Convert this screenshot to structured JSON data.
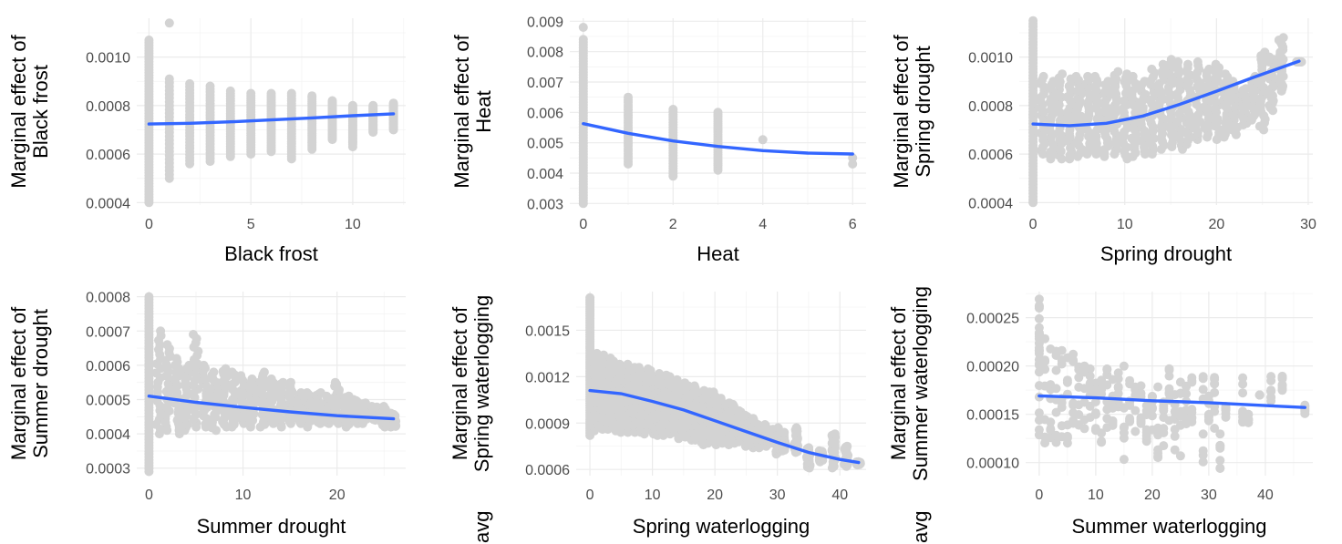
{
  "colors": {
    "points": "#d3d3d3",
    "fit": "#3366ff",
    "grid": "#ebebeb",
    "tick_text": "#4d4d4d"
  },
  "chart_data": [
    {
      "id": "black-frost",
      "type": "scatter",
      "xlabel": "Black frost",
      "ylabel_lines": [
        "Marginal effect of",
        "Black frost"
      ],
      "xlim": [
        -0.6,
        12.6
      ],
      "ylim": [
        0.00039,
        0.00116
      ],
      "xticks": [
        0,
        5,
        10
      ],
      "xtick_labels": [
        "0",
        "5",
        "10"
      ],
      "yticks": [
        0.0004,
        0.0006,
        0.0008,
        0.001
      ],
      "ytick_labels": [
        "0.0004",
        "0.0006",
        "0.0008",
        "0.0010"
      ],
      "points_mode": "columns",
      "columns": [
        [
          0,
          0.0004,
          0.00107
        ],
        [
          1,
          0.0005,
          0.00091
        ],
        [
          2,
          0.00056,
          0.00089
        ],
        [
          3,
          0.00057,
          0.00088
        ],
        [
          4,
          0.00059,
          0.00086
        ],
        [
          5,
          0.0006,
          0.00085
        ],
        [
          6,
          0.00061,
          0.00085
        ],
        [
          7,
          0.00058,
          0.00085
        ],
        [
          8,
          0.00063,
          0.00084
        ],
        [
          9,
          0.00066,
          0.00082
        ],
        [
          10,
          0.00064,
          0.0008
        ],
        [
          11,
          0.00069,
          0.0008
        ],
        [
          12,
          0.0007,
          0.00081
        ]
      ],
      "outliers": [
        [
          1,
          0.00114
        ],
        [
          8,
          0.00062
        ],
        [
          10,
          0.00063
        ]
      ],
      "fit": [
        [
          0,
          0.000724
        ],
        [
          2,
          0.000727
        ],
        [
          4,
          0.000733
        ],
        [
          6,
          0.000741
        ],
        [
          8,
          0.000749
        ],
        [
          10,
          0.000758
        ],
        [
          12,
          0.000766
        ]
      ]
    },
    {
      "id": "heat",
      "type": "scatter",
      "xlabel": "Heat",
      "ylabel_lines": [
        "Marginal effect of",
        "Heat"
      ],
      "xlim": [
        -0.3,
        6.3
      ],
      "ylim": [
        0.00295,
        0.0091
      ],
      "xticks": [
        0,
        2,
        4,
        6
      ],
      "xtick_labels": [
        "0",
        "2",
        "4",
        "6"
      ],
      "yticks": [
        0.003,
        0.004,
        0.005,
        0.006,
        0.007,
        0.008,
        0.009
      ],
      "ytick_labels": [
        "0.003",
        "0.004",
        "0.005",
        "0.006",
        "0.007",
        "0.008",
        "0.009"
      ],
      "points_mode": "columns",
      "columns": [
        [
          0,
          0.003,
          0.0084
        ],
        [
          1,
          0.0043,
          0.0065
        ],
        [
          2,
          0.0039,
          0.0061
        ],
        [
          3,
          0.0041,
          0.006
        ]
      ],
      "outliers": [
        [
          0,
          0.0088
        ],
        [
          4,
          0.0051
        ],
        [
          6,
          0.0043
        ],
        [
          6,
          0.0045
        ]
      ],
      "fit": [
        [
          0,
          0.00563
        ],
        [
          1,
          0.00531
        ],
        [
          2,
          0.00506
        ],
        [
          3,
          0.00488
        ],
        [
          4,
          0.00474
        ],
        [
          5,
          0.00466
        ],
        [
          6,
          0.00463
        ]
      ]
    },
    {
      "id": "spring-drought",
      "type": "scatter",
      "xlabel": "Spring drought",
      "ylabel_lines": [
        "Marginal effect of",
        "Spring drought"
      ],
      "xlim": [
        -1.5,
        30.5
      ],
      "ylim": [
        0.00039,
        0.00116
      ],
      "xticks": [
        0,
        10,
        20,
        30
      ],
      "xtick_labels": [
        "0",
        "10",
        "20",
        "30"
      ],
      "yticks": [
        0.0004,
        0.0006,
        0.0008,
        0.001
      ],
      "ytick_labels": [
        "0.0004",
        "0.0006",
        "0.0008",
        "0.0010"
      ],
      "points_mode": "cloud",
      "cloud": [
        [
          0,
          0.0004,
          0.00115
        ],
        [
          1,
          0.0006,
          0.00092
        ],
        [
          2,
          0.00058,
          0.0009
        ],
        [
          3,
          0.00058,
          0.00093
        ],
        [
          4,
          0.00058,
          0.00091
        ],
        [
          5,
          0.00059,
          0.00092
        ],
        [
          6,
          0.0006,
          0.00092
        ],
        [
          7,
          0.0006,
          0.00092
        ],
        [
          8,
          0.00059,
          0.0009
        ],
        [
          9,
          0.0006,
          0.00094
        ],
        [
          10,
          0.00058,
          0.00093
        ],
        [
          11,
          0.00059,
          0.00092
        ],
        [
          12,
          0.0006,
          0.0009
        ],
        [
          13,
          0.0006,
          0.00095
        ],
        [
          14,
          0.00062,
          0.00097
        ],
        [
          15,
          0.00063,
          0.00099
        ],
        [
          16,
          0.00062,
          0.00098
        ],
        [
          17,
          0.00064,
          0.00097
        ],
        [
          18,
          0.00066,
          0.00098
        ],
        [
          19,
          0.00067,
          0.00095
        ],
        [
          20,
          0.00066,
          0.00097
        ],
        [
          21,
          0.00067,
          0.00093
        ],
        [
          22,
          0.00068,
          0.0009
        ],
        [
          23,
          0.00072,
          0.00087
        ],
        [
          24,
          0.00074,
          0.00092
        ],
        [
          25,
          0.0007,
          0.00102
        ],
        [
          26,
          0.00078,
          0.001
        ],
        [
          27,
          0.00086,
          0.00108
        ],
        [
          29,
          0.00098,
          0.00098
        ]
      ],
      "fit": [
        [
          0,
          0.000724
        ],
        [
          4,
          0.000717
        ],
        [
          8,
          0.000727
        ],
        [
          12,
          0.000757
        ],
        [
          16,
          0.000805
        ],
        [
          20,
          0.000859
        ],
        [
          24,
          0.000916
        ],
        [
          29,
          0.000983
        ]
      ]
    },
    {
      "id": "summer-drought",
      "type": "scatter",
      "xlabel": "Summer drought",
      "ylabel_lines": [
        "Marginal effect of",
        "Summer drought"
      ],
      "xlim": [
        -1.3,
        27.3
      ],
      "ylim": [
        0.000278,
        0.000815
      ],
      "xticks": [
        0,
        10,
        20
      ],
      "xtick_labels": [
        "0",
        "10",
        "20"
      ],
      "yticks": [
        0.0003,
        0.0004,
        0.0005,
        0.0006,
        0.0007,
        0.0008
      ],
      "ytick_labels": [
        "0.0003",
        "0.0004",
        "0.0005",
        "0.0006",
        "0.0007",
        "0.0008"
      ],
      "points_mode": "cloud",
      "cloud": [
        [
          0,
          0.00029,
          0.0008
        ],
        [
          1,
          0.0004,
          0.0007
        ],
        [
          2,
          0.00041,
          0.00066
        ],
        [
          3,
          0.0004,
          0.00062
        ],
        [
          4,
          0.00041,
          0.0006
        ],
        [
          5,
          0.00042,
          0.00069
        ],
        [
          6,
          0.00042,
          0.0006
        ],
        [
          7,
          0.00041,
          0.00058
        ],
        [
          8,
          0.00042,
          0.00059
        ],
        [
          9,
          0.00042,
          0.00058
        ],
        [
          10,
          0.00043,
          0.00057
        ],
        [
          11,
          0.00042,
          0.00056
        ],
        [
          12,
          0.00042,
          0.00058
        ],
        [
          13,
          0.00043,
          0.00056
        ],
        [
          14,
          0.00042,
          0.00055
        ],
        [
          15,
          0.00043,
          0.00055
        ],
        [
          16,
          0.00043,
          0.00052
        ],
        [
          17,
          0.00042,
          0.00052
        ],
        [
          18,
          0.00043,
          0.00052
        ],
        [
          19,
          0.00043,
          0.00051
        ],
        [
          20,
          0.00043,
          0.00055
        ],
        [
          21,
          0.00042,
          0.00051
        ],
        [
          22,
          0.00043,
          0.0005
        ],
        [
          23,
          0.00043,
          0.00049
        ],
        [
          24,
          0.00044,
          0.00048
        ],
        [
          25,
          0.00042,
          0.00048
        ],
        [
          26,
          0.00042,
          0.00046
        ]
      ],
      "fit": [
        [
          0,
          0.00051
        ],
        [
          5,
          0.000492
        ],
        [
          10,
          0.000477
        ],
        [
          15,
          0.000464
        ],
        [
          20,
          0.000453
        ],
        [
          26,
          0.000444
        ]
      ]
    },
    {
      "id": "spring-waterlogging",
      "type": "scatter",
      "xlabel": "Spring waterlogging",
      "ylabel_lines": [
        "Marginal effect of",
        "Spring waterlogging"
      ],
      "left_cut_text": "avg",
      "xlim": [
        -2.2,
        44.2
      ],
      "ylim": [
        0.00056,
        0.00175
      ],
      "xticks": [
        0,
        10,
        20,
        30,
        40
      ],
      "xtick_labels": [
        "0",
        "10",
        "20",
        "30",
        "40"
      ],
      "yticks": [
        0.0006,
        0.0009,
        0.0012,
        0.0015
      ],
      "ytick_labels": [
        "0.0006",
        "0.0009",
        "0.0012",
        "0.0015"
      ],
      "points_mode": "cloud",
      "cloud": [
        [
          0,
          0.00082,
          0.00171
        ],
        [
          1,
          0.00085,
          0.00135
        ],
        [
          2,
          0.00086,
          0.00134
        ],
        [
          3,
          0.00086,
          0.00132
        ],
        [
          4,
          0.00085,
          0.0013
        ],
        [
          5,
          0.00084,
          0.00128
        ],
        [
          6,
          0.00084,
          0.00128
        ],
        [
          7,
          0.00084,
          0.00126
        ],
        [
          8,
          0.00084,
          0.00126
        ],
        [
          9,
          0.00083,
          0.00125
        ],
        [
          10,
          0.00083,
          0.00124
        ],
        [
          11,
          0.00082,
          0.00122
        ],
        [
          12,
          0.00082,
          0.00121
        ],
        [
          13,
          0.00083,
          0.0012
        ],
        [
          14,
          0.0008,
          0.00118
        ],
        [
          15,
          0.00081,
          0.00116
        ],
        [
          16,
          0.00079,
          0.00114
        ],
        [
          17,
          0.00079,
          0.00114
        ],
        [
          18,
          0.00076,
          0.00111
        ],
        [
          19,
          0.00077,
          0.0011
        ],
        [
          20,
          0.00076,
          0.0011
        ],
        [
          21,
          0.00077,
          0.00106
        ],
        [
          22,
          0.00076,
          0.00103
        ],
        [
          23,
          0.00077,
          0.00102
        ],
        [
          24,
          0.00078,
          0.00098
        ],
        [
          25,
          0.00075,
          0.00095
        ],
        [
          26,
          0.00074,
          0.00093
        ],
        [
          27,
          0.00074,
          0.00089
        ],
        [
          28,
          0.00075,
          0.00089
        ],
        [
          29,
          0.00077,
          0.00086
        ],
        [
          30,
          0.0007,
          0.00087
        ],
        [
          31,
          0.00072,
          0.00084
        ],
        [
          33,
          0.00071,
          0.00087
        ],
        [
          35,
          0.00061,
          0.00074
        ],
        [
          37,
          0.00065,
          0.00072
        ],
        [
          39,
          0.00061,
          0.00083
        ],
        [
          41,
          0.00062,
          0.00075
        ],
        [
          43,
          0.00063,
          0.00065
        ]
      ],
      "fit": [
        [
          0,
          0.00111
        ],
        [
          5,
          0.00109
        ],
        [
          10,
          0.00104
        ],
        [
          15,
          0.000985
        ],
        [
          20,
          0.000915
        ],
        [
          25,
          0.000845
        ],
        [
          30,
          0.000775
        ],
        [
          35,
          0.00071
        ],
        [
          40,
          0.000665
        ],
        [
          43,
          0.000645
        ]
      ]
    },
    {
      "id": "summer-waterlogging",
      "type": "scatter",
      "xlabel": "Summer waterlogging",
      "ylabel_lines": [
        "Marginal effect of",
        "Summer waterlogging"
      ],
      "left_cut_text": "avg",
      "xlim": [
        -2.4,
        48.4
      ],
      "ylim": [
        8.65e-05,
        0.000277
      ],
      "xticks": [
        0,
        10,
        20,
        30,
        40
      ],
      "xtick_labels": [
        "0",
        "10",
        "20",
        "30",
        "40"
      ],
      "yticks": [
        0.0001,
        0.00015,
        0.0002,
        0.00025
      ],
      "ytick_labels": [
        "0.00010",
        "0.00015",
        "0.00020",
        "0.00025"
      ],
      "points_mode": "sparse",
      "cloud": [
        [
          0,
          0.00012,
          0.00027
        ],
        [
          1,
          0.00012,
          0.00023
        ],
        [
          2,
          0.00011,
          0.00022
        ],
        [
          3,
          0.00012,
          0.00022
        ],
        [
          4,
          0.00012,
          0.00022
        ],
        [
          5,
          0.00012,
          0.00021
        ],
        [
          6,
          0.00013,
          0.00022
        ],
        [
          7,
          0.00013,
          0.00021
        ],
        [
          8,
          0.00013,
          0.0002
        ],
        [
          9,
          0.00014,
          0.0002
        ],
        [
          10,
          0.00013,
          0.00019
        ],
        [
          11,
          0.00012,
          0.00019
        ],
        [
          12,
          0.00012,
          0.0002
        ],
        [
          13,
          0.00013,
          0.00019
        ],
        [
          14,
          0.00014,
          0.0002
        ],
        [
          15,
          0.0001,
          0.00021
        ],
        [
          16,
          0.00014,
          0.00019
        ],
        [
          17,
          0.00013,
          0.00019
        ],
        [
          18,
          0.00014,
          0.00018
        ],
        [
          19,
          0.00012,
          0.00017
        ],
        [
          20,
          0.00013,
          0.00017
        ],
        [
          21,
          0.0001,
          0.00018
        ],
        [
          22,
          0.00011,
          0.00017
        ],
        [
          23,
          0.00011,
          0.0002
        ],
        [
          24,
          0.00011,
          0.00018
        ],
        [
          25,
          0.0001,
          0.00019
        ],
        [
          26,
          0.00014,
          0.00018
        ],
        [
          27,
          0.00014,
          0.00019
        ],
        [
          29,
          0.0001,
          0.00019
        ],
        [
          30,
          0.00014,
          0.00017
        ],
        [
          31,
          0.000125,
          0.00019
        ],
        [
          32,
          9e-05,
          0.00014
        ],
        [
          33,
          0.00014,
          0.00016
        ],
        [
          36,
          0.00013,
          0.00019
        ],
        [
          37,
          0.00014,
          0.00015
        ],
        [
          39,
          0.00017,
          0.00017
        ],
        [
          41,
          0.00016,
          0.00019
        ],
        [
          43,
          0.00017,
          0.00019
        ],
        [
          47,
          0.00015,
          0.00016
        ]
      ],
      "fit": [
        [
          0,
          0.000169
        ],
        [
          10,
          0.000167
        ],
        [
          20,
          0.000164
        ],
        [
          30,
          0.000162
        ],
        [
          40,
          0.000159
        ],
        [
          47,
          0.000157
        ]
      ]
    }
  ]
}
